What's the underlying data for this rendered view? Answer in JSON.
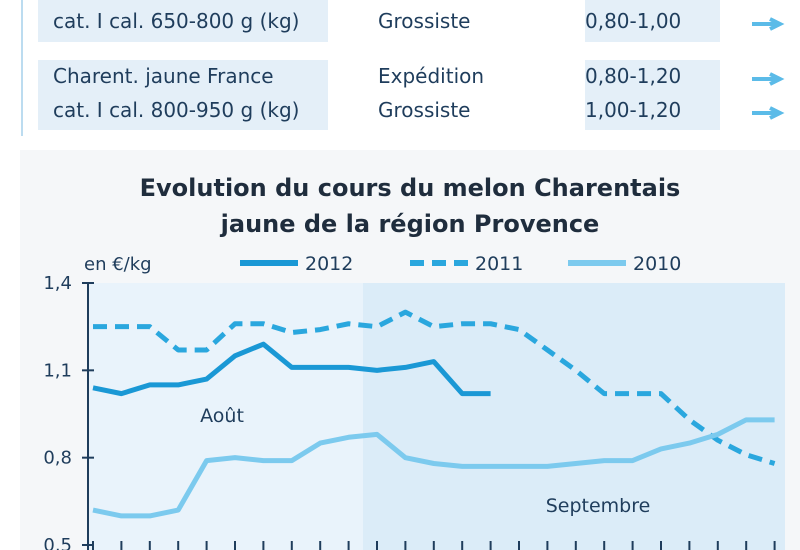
{
  "table": {
    "rows": [
      {
        "product": [
          "cat. I cal. 650-800 g (kg)"
        ],
        "stage": [
          "Grossiste"
        ],
        "price": [
          "0,80-1,00"
        ]
      },
      {
        "product": [
          "Charent. jaune France",
          "cat. I cal. 800-950 g (kg)"
        ],
        "stage": [
          "Expédition",
          "Grossiste"
        ],
        "price": [
          "0,80-1,20",
          "1,00-1,20"
        ]
      }
    ]
  },
  "chart_data": {
    "type": "line",
    "title": [
      "Evolution du cours du melon Charentais",
      "jaune de la région Provence"
    ],
    "y_label": "en €/kg",
    "annotations": [
      "Août",
      "Septembre"
    ],
    "categories": [
      null,
      null,
      null,
      null,
      null,
      null,
      null,
      null,
      null,
      null,
      null,
      null,
      null,
      null,
      null,
      null,
      null,
      null,
      null,
      null,
      null,
      null,
      null,
      null,
      null
    ],
    "ylim": [
      0.5,
      1.4
    ],
    "yticks": [
      {
        "value": 1.4,
        "label": "1,4"
      },
      {
        "value": 1.1,
        "label": "1,1"
      },
      {
        "value": 0.8,
        "label": "0,8"
      },
      {
        "value": 0.5,
        "label": "0,5"
      }
    ],
    "series": [
      {
        "name": "2012",
        "color": "#1a98d5",
        "dash": false,
        "values": [
          1.04,
          1.02,
          1.05,
          1.05,
          1.07,
          1.15,
          1.19,
          1.11,
          1.11,
          1.11,
          1.1,
          1.11,
          1.13,
          1.02,
          1.02,
          null,
          null,
          null,
          null,
          null,
          null,
          null,
          null,
          null,
          null
        ]
      },
      {
        "name": "2011",
        "color": "#2aa7de",
        "dash": true,
        "values": [
          1.25,
          1.25,
          1.25,
          1.17,
          1.17,
          1.26,
          1.26,
          1.23,
          1.24,
          1.26,
          1.25,
          1.3,
          1.25,
          1.26,
          1.26,
          1.24,
          1.17,
          1.1,
          1.02,
          1.02,
          1.02,
          0.93,
          0.86,
          0.81,
          0.78
        ]
      },
      {
        "name": "2010",
        "color": "#7ccaee",
        "dash": false,
        "values": [
          0.62,
          0.6,
          0.6,
          0.62,
          0.79,
          0.8,
          0.79,
          0.79,
          0.85,
          0.87,
          0.88,
          0.8,
          0.78,
          0.77,
          0.77,
          0.77,
          0.77,
          0.78,
          0.79,
          0.79,
          0.83,
          0.85,
          0.88,
          0.93,
          0.93
        ]
      }
    ]
  }
}
